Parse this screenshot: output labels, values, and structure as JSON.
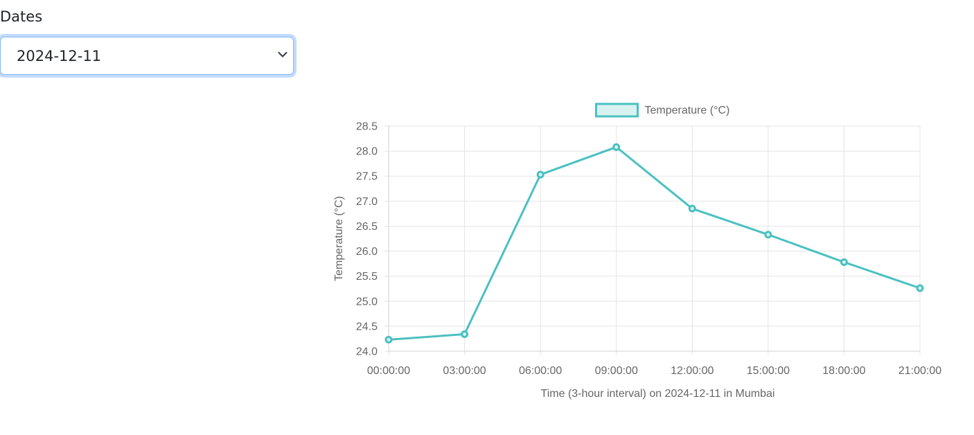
{
  "form": {
    "label": "Dates",
    "selected_date": "2024-12-11"
  },
  "chart_data": {
    "type": "line",
    "legend_label": "Temperature (°C)",
    "legend_position": "top",
    "xlabel": "Time (3-hour interval) on 2024-12-11 in Mumbai",
    "ylabel": "Temperature (°C)",
    "categories": [
      "00:00:00",
      "03:00:00",
      "06:00:00",
      "09:00:00",
      "12:00:00",
      "15:00:00",
      "18:00:00",
      "21:00:00"
    ],
    "values": [
      24.23,
      24.34,
      27.53,
      28.08,
      26.85,
      26.33,
      25.78,
      25.26
    ],
    "ylim": [
      24.0,
      28.5
    ],
    "yticks": [
      "24.0",
      "24.5",
      "25.0",
      "25.5",
      "26.0",
      "26.5",
      "27.0",
      "27.5",
      "28.0",
      "28.5"
    ],
    "grid": true,
    "line_color": "#4bc0c0",
    "fill_color": "#d8f1f1"
  }
}
